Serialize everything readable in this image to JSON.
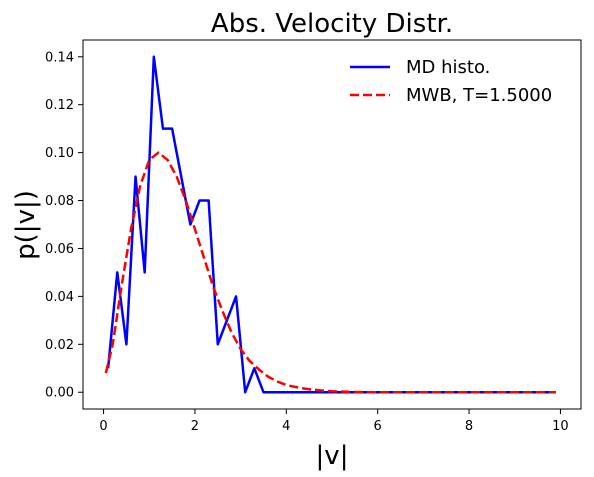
{
  "chart_data": {
    "type": "line",
    "title": "Abs. Velocity Distr.",
    "xlabel": "|v|",
    "ylabel": "p(|v|)",
    "xlim": [
      -0.45,
      10.45
    ],
    "ylim": [
      -0.007,
      0.147
    ],
    "xticks": [
      0,
      2,
      4,
      6,
      8,
      10
    ],
    "yticks": [
      0.0,
      0.02,
      0.04,
      0.06,
      0.08,
      0.1,
      0.12,
      0.14
    ],
    "ytick_labels": [
      "0.00",
      "0.02",
      "0.04",
      "0.06",
      "0.08",
      "0.10",
      "0.12",
      "0.14"
    ],
    "legend_position": "upper-right",
    "grid": false,
    "series": [
      {
        "name": "MD histo.",
        "color": "#0000ff",
        "style": "solid",
        "x": [
          0.1,
          0.3,
          0.5,
          0.7,
          0.9,
          1.1,
          1.3,
          1.5,
          1.7,
          1.9,
          2.1,
          2.3,
          2.5,
          2.7,
          2.9,
          3.1,
          3.3,
          3.5,
          3.7,
          3.9,
          4.1,
          4.5,
          5.0,
          6.0,
          7.0,
          8.0,
          9.0,
          9.9
        ],
        "y": [
          0.01,
          0.05,
          0.02,
          0.09,
          0.05,
          0.14,
          0.11,
          0.11,
          0.09,
          0.07,
          0.08,
          0.08,
          0.02,
          0.03,
          0.04,
          0.0,
          0.01,
          0.0,
          0.0,
          0.0,
          0.0,
          0.0,
          0.0,
          0.0,
          0.0,
          0.0,
          0.0,
          0.0
        ]
      },
      {
        "name": "MWB, T=1.5000",
        "color": "#ff0000",
        "style": "dashed",
        "x": [
          0.05,
          0.2,
          0.4,
          0.6,
          0.8,
          1.0,
          1.2,
          1.4,
          1.6,
          1.8,
          2.0,
          2.2,
          2.4,
          2.6,
          2.8,
          3.0,
          3.2,
          3.4,
          3.6,
          3.8,
          4.0,
          4.3,
          4.6,
          5.0,
          5.5,
          6.0,
          7.0,
          8.0,
          9.0,
          9.9
        ],
        "y": [
          0.008,
          0.02,
          0.045,
          0.068,
          0.086,
          0.097,
          0.1,
          0.097,
          0.09,
          0.08,
          0.068,
          0.056,
          0.044,
          0.034,
          0.025,
          0.018,
          0.013,
          0.0095,
          0.0065,
          0.0045,
          0.003,
          0.0018,
          0.001,
          0.0004,
          0.0001,
          0.0,
          0.0,
          0.0,
          0.0,
          0.0
        ]
      }
    ]
  }
}
